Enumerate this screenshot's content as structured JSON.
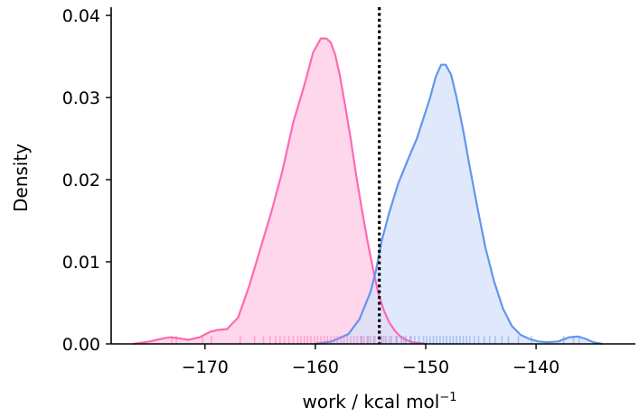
{
  "chart_data": {
    "type": "area",
    "title": "",
    "xlabel_main": "work / kcal mol",
    "xlabel_sup": "−1",
    "ylabel": "Density",
    "xlim": [
      -178.5,
      -131
    ],
    "ylim": [
      0,
      0.041
    ],
    "x_ticks": [
      -170,
      -160,
      -150,
      -140
    ],
    "x_tick_labels": [
      "−170",
      "−160",
      "−150",
      "−140"
    ],
    "y_ticks": [
      0,
      0.01,
      0.02,
      0.03,
      0.04
    ],
    "y_tick_labels": [
      "0.00",
      "0.01",
      "0.02",
      "0.03",
      "0.04"
    ],
    "grid": false,
    "reference_line_x": -154.2,
    "series": [
      {
        "color": "#ff69b4",
        "fill": "#ffc9e4",
        "x": [
          -176.5,
          -175,
          -174,
          -173.2,
          -172.5,
          -171.5,
          -170.5,
          -169.5,
          -168.8,
          -168,
          -167,
          -166,
          -165,
          -164,
          -163,
          -162,
          -161,
          -160.2,
          -159.5,
          -159,
          -158.6,
          -158.2,
          -157.8,
          -157.3,
          -156.8,
          -156.3,
          -155.8,
          -155.3,
          -154.8,
          -154.3,
          -153.8,
          -153.3,
          -152.8,
          -152.3,
          -151.8,
          -151.2,
          -150.5,
          -150
        ],
        "y": [
          0.0,
          0.0003,
          0.0006,
          0.0008,
          0.0007,
          0.0005,
          0.0008,
          0.0015,
          0.0017,
          0.0018,
          0.0032,
          0.007,
          0.0115,
          0.016,
          0.021,
          0.027,
          0.0315,
          0.0355,
          0.0372,
          0.0372,
          0.0367,
          0.0352,
          0.0328,
          0.029,
          0.025,
          0.0205,
          0.0165,
          0.0127,
          0.0093,
          0.0062,
          0.0041,
          0.0026,
          0.0016,
          0.0009,
          0.0005,
          0.0002,
          0.0001,
          0.0
        ]
      },
      {
        "color": "#6495ed",
        "fill": "#d5e2f9",
        "x": [
          -160,
          -158.5,
          -157,
          -156,
          -155,
          -154.5,
          -154,
          -153.3,
          -152.5,
          -151.5,
          -150.8,
          -150.2,
          -149.6,
          -149.1,
          -148.6,
          -148.2,
          -147.7,
          -147.2,
          -146.6,
          -146,
          -145.3,
          -144.6,
          -143.8,
          -143,
          -142.2,
          -141.4,
          -140.6,
          -139.8,
          -139,
          -138,
          -137,
          -136.2,
          -135.5,
          -134.8,
          -134
        ],
        "y": [
          0.0,
          0.0003,
          0.0012,
          0.003,
          0.0063,
          0.009,
          0.0125,
          0.016,
          0.0195,
          0.0228,
          0.025,
          0.0275,
          0.03,
          0.0325,
          0.034,
          0.034,
          0.0328,
          0.03,
          0.026,
          0.0215,
          0.0165,
          0.0118,
          0.0076,
          0.0043,
          0.0022,
          0.0011,
          0.0006,
          0.0003,
          0.0002,
          0.0003,
          0.0008,
          0.0009,
          0.0006,
          0.0002,
          0.0
        ]
      }
    ],
    "rug": [
      {
        "color": "#ff69b4",
        "values": [
          -173,
          -172.6,
          -170.2,
          -169.4,
          -166.8,
          -165.5,
          -164.7,
          -164.1,
          -163.6,
          -163.2,
          -162.8,
          -162.4,
          -162.0,
          -161.6,
          -161.3,
          -161.0,
          -160.7,
          -160.4,
          -160.1,
          -159.8,
          -159.5,
          -159.2,
          -158.9,
          -158.6,
          -158.3,
          -158.0,
          -157.7,
          -157.4,
          -157.1,
          -156.8,
          -156.5,
          -156.2,
          -155.9,
          -155.6,
          -155.3,
          -155.0,
          -154.6,
          -154.2,
          -153.8,
          -153.3,
          -152.7,
          -152.0,
          -151.3
        ]
      },
      {
        "color": "#6495ed",
        "values": [
          -155.8,
          -155.2,
          -154.7,
          -154.0,
          -153.6,
          -153.1,
          -152.6,
          -152.2,
          -151.8,
          -151.4,
          -151.0,
          -150.6,
          -150.2,
          -149.9,
          -149.6,
          -149.3,
          -149.0,
          -148.7,
          -148.4,
          -148.1,
          -147.8,
          -147.5,
          -147.2,
          -146.9,
          -146.6,
          -146.3,
          -146.0,
          -145.6,
          -145.2,
          -144.7,
          -144.2,
          -143.7,
          -143.1,
          -142.5,
          -141.6,
          -140.4,
          -137.5,
          -136.6,
          -136.1
        ]
      }
    ]
  }
}
